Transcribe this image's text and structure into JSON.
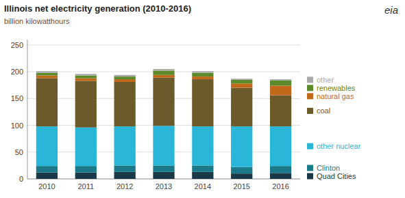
{
  "chart_data": {
    "type": "bar",
    "stacked": true,
    "title": "Illinois net electricity generation (2010-2016)",
    "subtitle": "billion kilowatthours",
    "annotations": [
      "eia"
    ],
    "categories": [
      "2010",
      "2011",
      "2012",
      "2013",
      "2014",
      "2015",
      "2016"
    ],
    "series": [
      {
        "name": "Quad Cities",
        "color": "#1a3a4a",
        "values": [
          12,
          12,
          13,
          13,
          13,
          10,
          11
        ]
      },
      {
        "name": "Clinton",
        "color": "#1a7a8a",
        "values": [
          12,
          12,
          12,
          12,
          12,
          12,
          13
        ]
      },
      {
        "name": "other nuclear",
        "color": "#29b6d8",
        "values": [
          74,
          72,
          73,
          74,
          73,
          76,
          74
        ]
      },
      {
        "name": "coal",
        "color": "#6b5a2a",
        "values": [
          90,
          87,
          83,
          90,
          88,
          72,
          58
        ]
      },
      {
        "name": "natural gas",
        "color": "#c1681a",
        "values": [
          5,
          5,
          5,
          5,
          5,
          8,
          18
        ]
      },
      {
        "name": "renewables",
        "color": "#5a8a2a",
        "values": [
          5,
          5,
          5,
          8,
          7,
          7,
          10
        ]
      },
      {
        "name": "other",
        "color": "#aaaaaa",
        "values": [
          3,
          3,
          3,
          3,
          3,
          2,
          2
        ]
      }
    ],
    "ylim": [
      0,
      260
    ],
    "yticks": [
      0,
      50,
      100,
      150,
      200,
      250
    ],
    "grid": true,
    "legend": "right"
  }
}
